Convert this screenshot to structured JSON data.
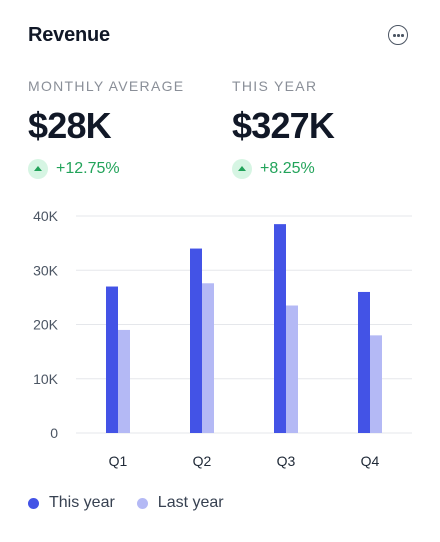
{
  "card": {
    "title": "Revenue",
    "menu_icon": "more-horizontal-icon"
  },
  "stats": [
    {
      "label": "MONTHLY AVERAGE",
      "value": "$28K",
      "change": "+12.75%",
      "trend_icon": "arrow-up-icon"
    },
    {
      "label": "THIS YEAR",
      "value": "$327K",
      "change": "+8.25%",
      "trend_icon": "arrow-up-icon"
    }
  ],
  "colors": {
    "this_year": "#4353e6",
    "last_year": "#b4b9f5",
    "positive": "#22a35a",
    "positive_bg": "#d6f5e3",
    "grid": "#e5e7eb"
  },
  "chart_data": {
    "type": "bar",
    "categories": [
      "Q1",
      "Q2",
      "Q3",
      "Q4"
    ],
    "series": [
      {
        "name": "This year",
        "values": [
          27000,
          34000,
          38500,
          26000
        ]
      },
      {
        "name": "Last year",
        "values": [
          19000,
          27600,
          23500,
          18000
        ]
      }
    ],
    "yticks": [
      "40K",
      "30K",
      "20K",
      "10K",
      "0"
    ],
    "ytick_values": [
      40000,
      30000,
      20000,
      10000,
      0
    ],
    "ylim": [
      0,
      40000
    ],
    "grid": true,
    "legend_position": "bottom-left"
  }
}
